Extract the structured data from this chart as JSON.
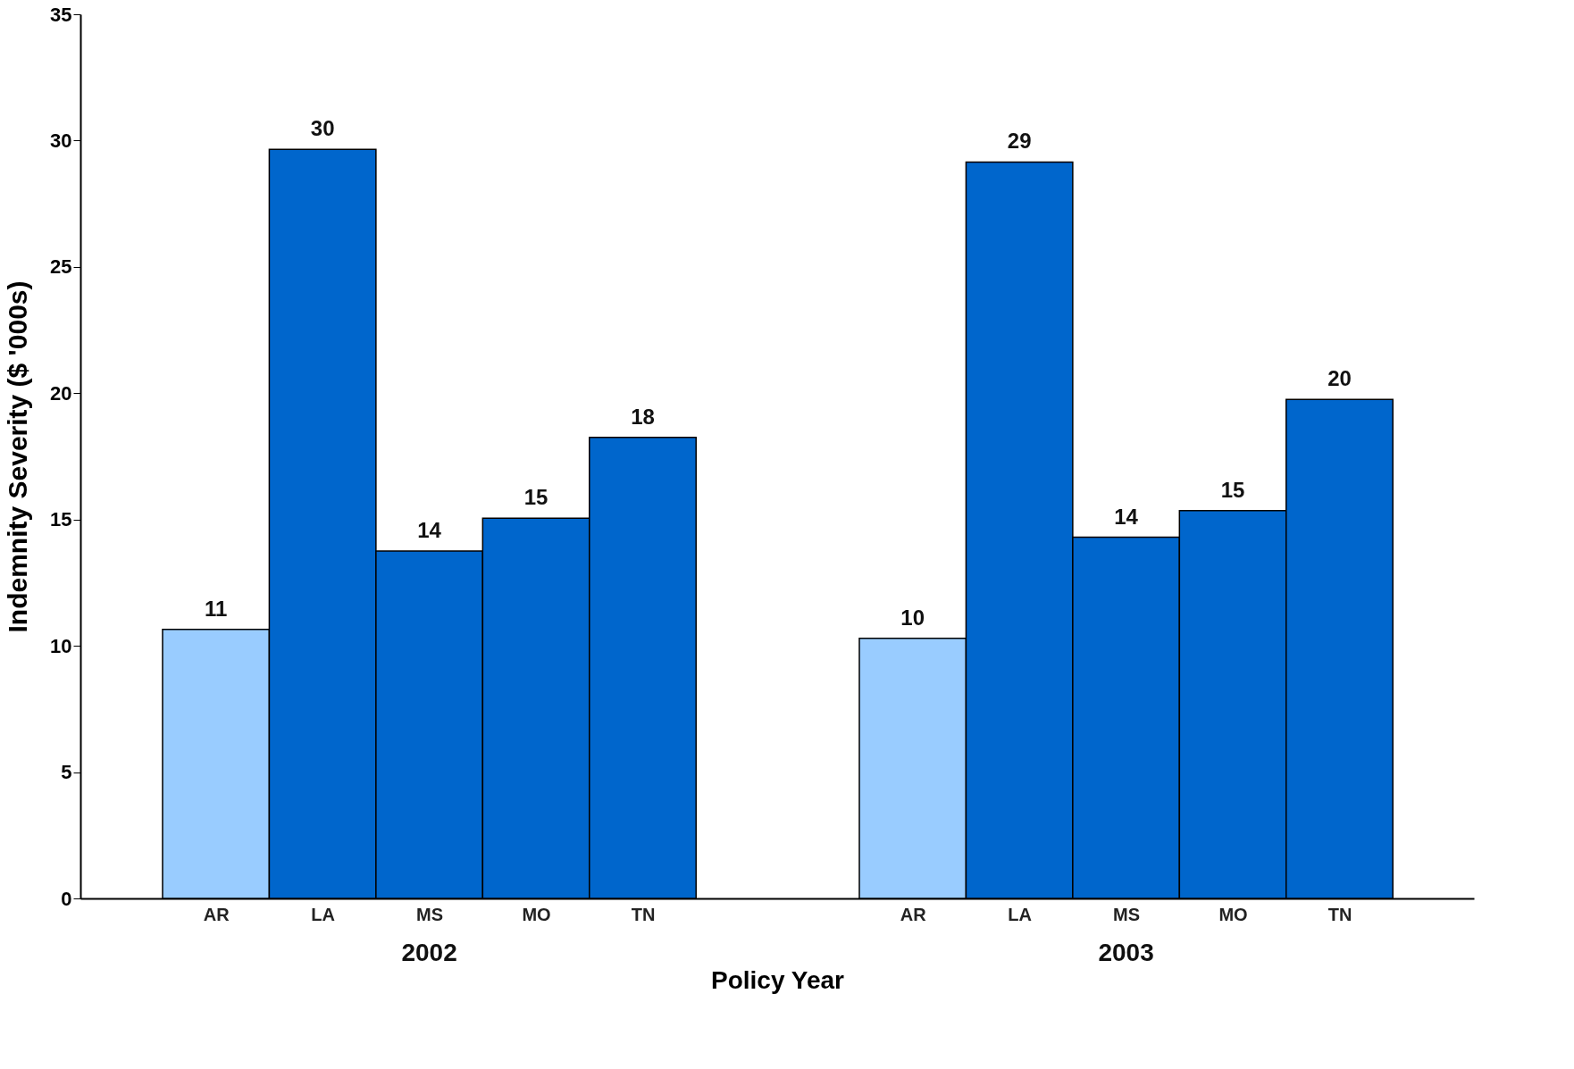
{
  "chart_data": {
    "type": "bar",
    "xlabel": "Policy Year",
    "ylabel": "Indemnity Severity ($ '000s)",
    "categories": [
      "AR",
      "LA",
      "MS",
      "MO",
      "TN",
      "AR",
      "LA",
      "MS",
      "MO",
      "TN"
    ],
    "values": [
      10.65,
      29.65,
      13.75,
      15.05,
      18.25,
      10.3,
      29.15,
      14.3,
      15.35,
      19.75
    ],
    "colors": [
      "#99ccff",
      "#0066cc",
      "#0066cc",
      "#0066cc",
      "#0066cc",
      "#99ccff",
      "#0066cc",
      "#0066cc",
      "#0066cc",
      "#0066cc"
    ],
    "value_labels": [
      "11",
      "30",
      "14",
      "15",
      "18",
      "10",
      "29",
      "14",
      "15",
      "20"
    ],
    "annotations": [
      "2002",
      "2003"
    ],
    "ylim": [
      0,
      35
    ],
    "yticks": [
      0,
      5,
      10,
      15,
      20,
      25,
      30,
      35
    ],
    "grid": false
  }
}
